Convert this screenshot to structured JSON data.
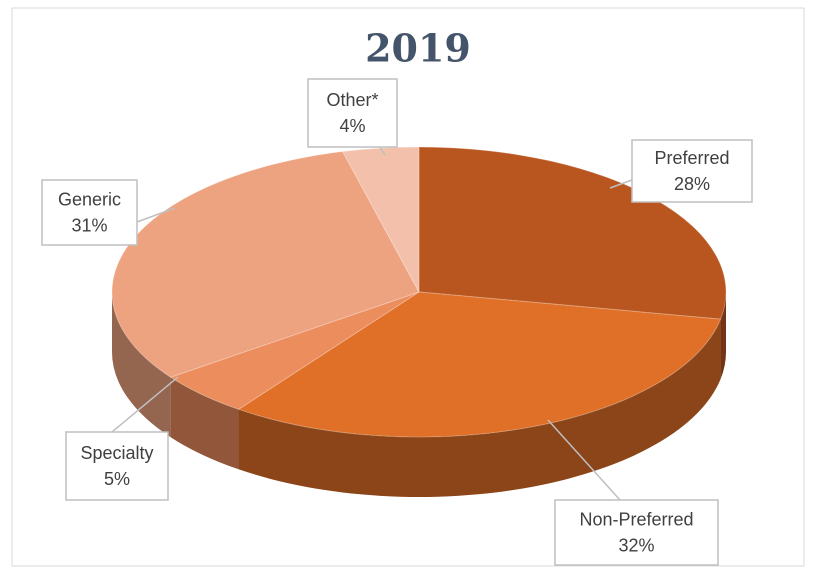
{
  "chart_data": {
    "type": "pie",
    "title": "2019",
    "categories": [
      "Preferred",
      "Non-Preferred",
      "Specialty",
      "Generic",
      "Other*"
    ],
    "values": [
      28,
      32,
      5,
      31,
      4
    ],
    "value_labels": [
      "28%",
      "32%",
      "5%",
      "31%",
      "4%"
    ],
    "colors": [
      "#b9561f",
      "#e06f27",
      "#eb8d5d",
      "#eea380",
      "#f3c1ab"
    ]
  }
}
